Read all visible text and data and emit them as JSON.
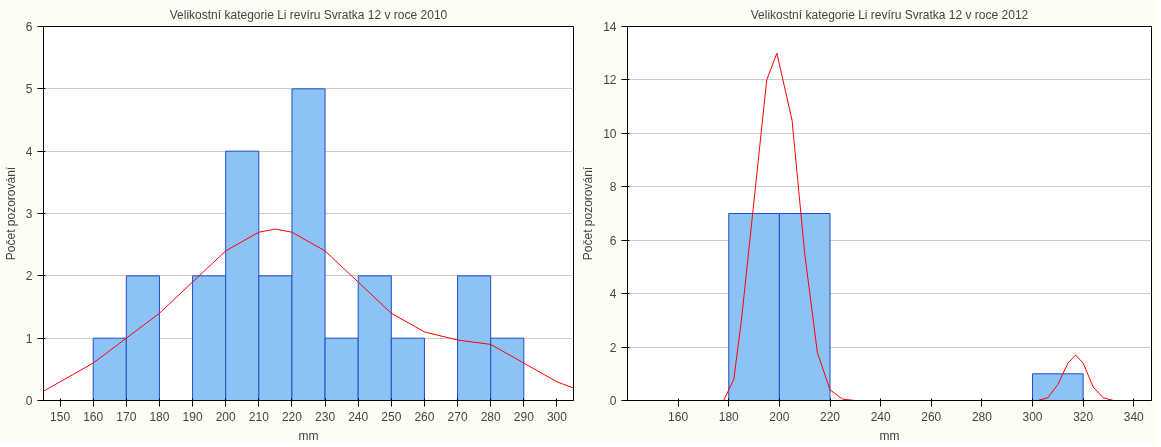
{
  "chart_data": [
    {
      "type": "histogram",
      "title": "Velikostní kategorie Li revíru Svratka 12 v roce 2010",
      "xlabel": "mm",
      "ylabel": "Počet pozorování",
      "color": "#8cc2f5",
      "bins": [
        160,
        170,
        180,
        190,
        200,
        210,
        220,
        230,
        240,
        250,
        260,
        270,
        280,
        290
      ],
      "values": [
        1,
        2,
        0,
        2,
        4,
        2,
        5,
        1,
        2,
        1,
        0,
        2,
        1
      ],
      "xlim": [
        145,
        305
      ],
      "xticks": [
        150,
        160,
        170,
        180,
        190,
        200,
        210,
        220,
        230,
        240,
        250,
        260,
        270,
        280,
        290,
        300
      ],
      "ylim": [
        0,
        6
      ],
      "yticks": [
        0,
        1,
        2,
        3,
        4,
        5,
        6
      ],
      "grid": "y",
      "series": [
        {
          "type": "line",
          "color": "#ff0000",
          "x": [
            145,
            150,
            160,
            170,
            180,
            190,
            200,
            210,
            215,
            220,
            230,
            240,
            250,
            260,
            270,
            280,
            290,
            300,
            305
          ],
          "values": [
            0.15,
            0.3,
            0.6,
            1.0,
            1.4,
            1.9,
            2.4,
            2.7,
            2.75,
            2.7,
            2.4,
            1.9,
            1.4,
            1.1,
            0.97,
            0.9,
            0.6,
            0.3,
            0.2
          ]
        }
      ]
    },
    {
      "type": "histogram",
      "title": "Velikostní kategorie Li revíru Svratka 12 v roce 2012",
      "xlabel": "mm",
      "ylabel": "Počet pozorování",
      "color": "#8cc2f5",
      "bins": [
        180,
        200,
        220,
        240,
        260,
        280,
        300,
        320
      ],
      "values": [
        7,
        7,
        0,
        0,
        0,
        0,
        1
      ],
      "xlim": [
        140,
        347
      ],
      "xticks": [
        160,
        180,
        200,
        220,
        240,
        260,
        280,
        300,
        320,
        340
      ],
      "ylim": [
        0,
        14
      ],
      "yticks": [
        0,
        2,
        4,
        6,
        8,
        10,
        12,
        14
      ],
      "grid": "y",
      "series": [
        {
          "type": "line",
          "color": "#ff0000",
          "x": [
            178,
            182,
            185,
            190,
            195,
            199,
            205,
            210,
            215,
            220,
            225,
            230,
            null,
            302,
            306,
            310,
            314,
            317,
            320,
            324,
            328,
            332
          ],
          "values": [
            0,
            0.8,
            3,
            7.5,
            12,
            13,
            10.5,
            5.5,
            1.8,
            0.4,
            0.05,
            0,
            null,
            0,
            0.1,
            0.6,
            1.4,
            1.7,
            1.4,
            0.5,
            0.1,
            0
          ]
        }
      ]
    }
  ]
}
